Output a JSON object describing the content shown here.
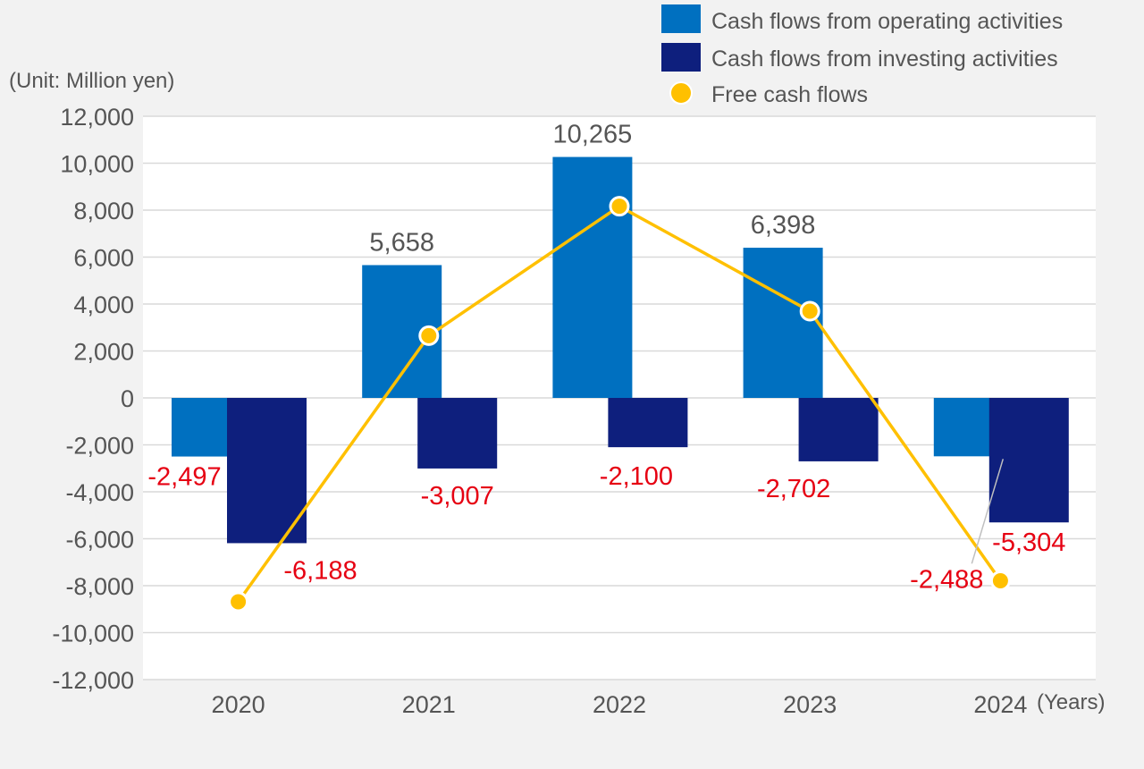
{
  "chart_data": {
    "type": "bar",
    "unit_label": "(Unit: Million yen)",
    "x_unit_label": "(Years)",
    "categories": [
      "2020",
      "2021",
      "2022",
      "2023",
      "2024"
    ],
    "ylim": [
      -12000,
      12000
    ],
    "yticks": [
      12000,
      10000,
      8000,
      6000,
      4000,
      2000,
      0,
      -2000,
      -4000,
      -6000,
      -8000,
      -10000,
      -12000
    ],
    "ytick_labels": [
      "12,000",
      "10,000",
      "8,000",
      "6,000",
      "4,000",
      "2,000",
      "0",
      "-2,000",
      "-4,000",
      "-6,000",
      "-8,000",
      "-10,000",
      "-12,000"
    ],
    "grid": true,
    "legend_position": "top-right",
    "series": [
      {
        "name": "Cash flows from operating activities",
        "type": "bar",
        "color": "#0070c0",
        "values": [
          -2497,
          5658,
          10265,
          6398,
          -2488
        ],
        "labels": [
          "-2,497",
          "5,658",
          "10,265",
          "6,398",
          "-2,488"
        ]
      },
      {
        "name": "Cash flows from investing activities",
        "type": "bar",
        "color": "#0e1f7d",
        "values": [
          -6188,
          -3007,
          -2100,
          -2702,
          -5304
        ],
        "labels": [
          "-6,188",
          "-3,007",
          "-2,100",
          "-2,702",
          "-5,304"
        ]
      },
      {
        "name": "Free cash flows",
        "type": "line",
        "color": "#ffc000",
        "values": [
          -8685,
          2651,
          8165,
          3696,
          -7792
        ]
      }
    ]
  }
}
